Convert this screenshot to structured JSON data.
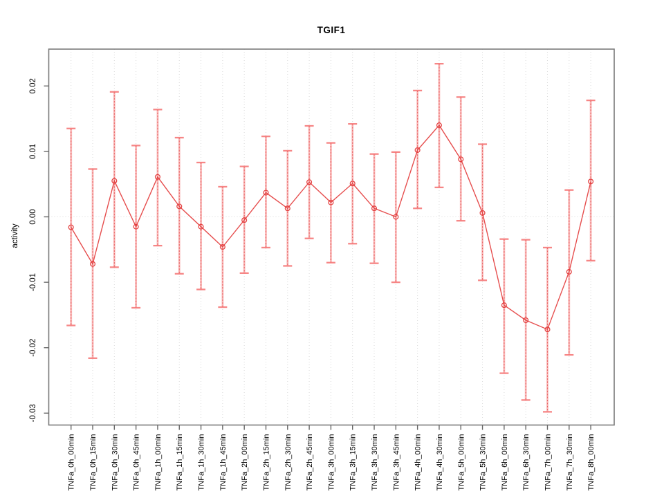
{
  "chart_data": {
    "type": "line",
    "subtype": "errorbar-line",
    "title": "TGIF1",
    "xlabel": "",
    "ylabel": "activity",
    "categories": [
      "TNFa_0h_00min",
      "TNFa_0h_15min",
      "TNFa_0h_30min",
      "TNFa_0h_45min",
      "TNFa_1h_00min",
      "TNFa_1h_15min",
      "TNFa_1h_30min",
      "TNFa_1h_45min",
      "TNFa_2h_00min",
      "TNFa_2h_15min",
      "TNFa_2h_30min",
      "TNFa_2h_45min",
      "TNFa_3h_00min",
      "TNFa_3h_15min",
      "TNFa_3h_30min",
      "TNFa_3h_45min",
      "TNFa_4h_00min",
      "TNFa_4h_30min",
      "TNFa_5h_00min",
      "TNFa_5h_30min",
      "TNFa_6h_00min",
      "TNFa_6h_30min",
      "TNFa_7h_00min",
      "TNFa_7h_30min",
      "TNFa_8h_00min"
    ],
    "values": [
      -0.0016,
      -0.0072,
      0.0055,
      -0.0015,
      0.0061,
      0.0016,
      -0.0015,
      -0.0046,
      -0.0005,
      0.0037,
      0.0013,
      0.0053,
      0.0022,
      0.0051,
      0.0013,
      0.0,
      0.0102,
      0.014,
      0.0088,
      0.0006,
      -0.0135,
      -0.0158,
      -0.0172,
      -0.0084,
      0.0054
    ],
    "err_high": [
      0.0135,
      0.0073,
      0.0191,
      0.0109,
      0.0164,
      0.0121,
      0.0083,
      0.0046,
      0.0077,
      0.0123,
      0.0101,
      0.0139,
      0.0113,
      0.0142,
      0.0096,
      0.0099,
      0.0193,
      0.0234,
      0.0183,
      0.0111,
      -0.0034,
      -0.0035,
      -0.0047,
      0.0041,
      0.0178
    ],
    "err_low": [
      -0.0166,
      -0.0216,
      -0.0077,
      -0.0139,
      -0.0044,
      -0.0087,
      -0.0111,
      -0.0138,
      -0.0086,
      -0.0047,
      -0.0075,
      -0.0033,
      -0.007,
      -0.0041,
      -0.0071,
      -0.01,
      0.0013,
      0.0045,
      -0.0006,
      -0.0097,
      -0.0239,
      -0.028,
      -0.0298,
      -0.0211,
      -0.0067
    ],
    "yticks": [
      0.02,
      0.01,
      0.0,
      -0.01,
      -0.02,
      -0.03
    ],
    "ytick_labels": [
      "0.02",
      "0.01",
      "0.00",
      "-0.01",
      "-0.02",
      "-0.03"
    ],
    "ylim": [
      -0.0316,
      0.0257
    ],
    "grid": "dotted vertical gridline per category + dotted zero line",
    "legend": "none",
    "colors": {
      "series": "#e33b3b",
      "error_bar_fill": "#f67979",
      "error_bar_dash": "#e43c3c",
      "grid": "#d9d9d9",
      "axis_box": "#7a7a7a",
      "tick": "#666666",
      "text": "#000000",
      "background": "#ffffff"
    }
  }
}
